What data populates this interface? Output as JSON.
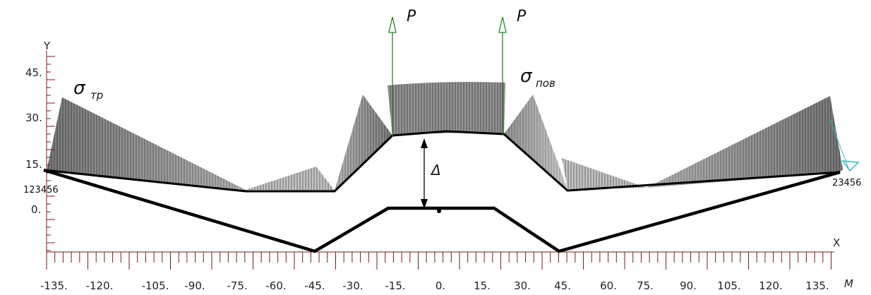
{
  "axes": {
    "y_label": "Y",
    "x_label": "X",
    "x_unit": "M",
    "x_ticks": [
      "-135.",
      "-120.",
      "-105.",
      "-90.",
      "-75.",
      "-60.",
      "-45.",
      "-30.",
      "-15.",
      "0.",
      "15.",
      "30.",
      "45.",
      "60.",
      "75.",
      "90.",
      "105.",
      "120.",
      "135."
    ],
    "y_ticks": [
      "45.",
      "30.",
      "15.",
      "0."
    ]
  },
  "labels": {
    "force_left": "P",
    "force_right": "P",
    "sigma_left_symbol": "σ",
    "sigma_left_sub": "тр",
    "sigma_right_symbol": "σ",
    "sigma_right_sub": "пов",
    "delta": "Δ",
    "node_left": "123456",
    "node_right": "23456"
  },
  "colors": {
    "axis": "#7a1a1a",
    "contour": "#000000",
    "outline": "#33cc33",
    "stress_fill": "#8c8c8c",
    "force": "#228822",
    "marker": "#33bbbb"
  }
}
